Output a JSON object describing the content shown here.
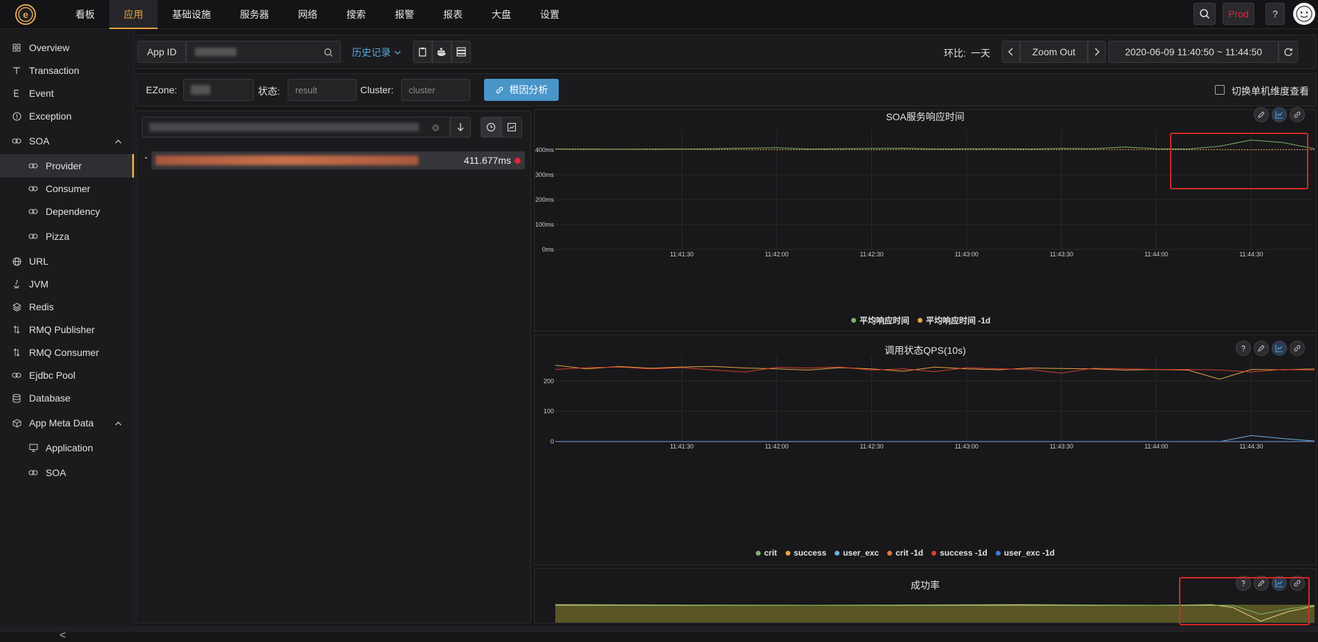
{
  "nav": {
    "items": [
      "看板",
      "应用",
      "基础设施",
      "服务器",
      "网络",
      "搜索",
      "报警",
      "报表",
      "大盘",
      "设置"
    ],
    "active_index": 1,
    "env": "Prod",
    "help": "?"
  },
  "sidebar": {
    "items": [
      {
        "label": "Overview",
        "icon": "grid-icon"
      },
      {
        "label": "Transaction",
        "icon": "t-icon"
      },
      {
        "label": "Event",
        "icon": "e-icon"
      },
      {
        "label": "Exception",
        "icon": "exclamation-icon"
      },
      {
        "label": "SOA",
        "icon": "link-icon",
        "expanded": true
      },
      {
        "label": "Provider",
        "icon": "link-icon",
        "sub": true,
        "active": true
      },
      {
        "label": "Consumer",
        "icon": "link-icon",
        "sub": true
      },
      {
        "label": "Dependency",
        "icon": "link-icon",
        "sub": true
      },
      {
        "label": "Pizza",
        "icon": "link-icon",
        "sub": true
      },
      {
        "label": "URL",
        "icon": "globe-icon"
      },
      {
        "label": "JVM",
        "icon": "java-icon"
      },
      {
        "label": "Redis",
        "icon": "layers-icon"
      },
      {
        "label": "RMQ Publisher",
        "icon": "arrows-icon"
      },
      {
        "label": "RMQ Consumer",
        "icon": "arrows-icon"
      },
      {
        "label": "Ejdbc Pool",
        "icon": "link-icon"
      },
      {
        "label": "Database",
        "icon": "database-icon"
      },
      {
        "label": "App Meta Data",
        "icon": "box-icon",
        "expanded": true
      },
      {
        "label": "Application",
        "icon": "monitor-icon",
        "sub": true
      },
      {
        "label": "SOA",
        "icon": "link-icon",
        "sub": true
      }
    ],
    "collapse": "<"
  },
  "toolbar": {
    "app_id_label": "App ID",
    "history_label": "历史记录",
    "compare_label": "环比:",
    "compare_value": "一天",
    "zoom_out": "Zoom Out",
    "time_range": "2020-06-09 11:40:50 ~ 11:44:50"
  },
  "filters": {
    "ezone_label": "EZone:",
    "status_label": "状态:",
    "status_placeholder": "result",
    "cluster_label": "Cluster:",
    "cluster_placeholder": "cluster",
    "root_cause_button": "根因分析",
    "switch_label": "切换单机维度查看"
  },
  "list": {
    "row_prefix": "-",
    "row_value": "411.677ms",
    "status_color": "#e0253b"
  },
  "charts": [
    {
      "title": "SOA服务响应时间",
      "yticks": [
        "400ms",
        "300ms",
        "200ms",
        "100ms",
        "0ms"
      ],
      "xticks": [
        "11:41:30",
        "11:42:00",
        "11:42:30",
        "11:43:00",
        "11:43:30",
        "11:44:00",
        "11:44:30"
      ],
      "legend": [
        {
          "name": "平均响应时间",
          "color": "#7fb56a"
        },
        {
          "name": "平均响应时间 -1d",
          "color": "#e8a642"
        }
      ]
    },
    {
      "title": "调用状态QPS(10s)",
      "yticks": [
        "200",
        "100",
        "0"
      ],
      "xticks": [
        "11:41:30",
        "11:42:00",
        "11:42:30",
        "11:43:00",
        "11:43:30",
        "11:44:00",
        "11:44:30"
      ],
      "legend": [
        {
          "name": "crit",
          "color": "#7fb56a"
        },
        {
          "name": "success",
          "color": "#e8a642"
        },
        {
          "name": "user_exc",
          "color": "#6fb1e0"
        },
        {
          "name": "crit -1d",
          "color": "#e07b3b"
        },
        {
          "name": "success -1d",
          "color": "#d9402e"
        },
        {
          "name": "user_exc -1d",
          "color": "#3b7bd9"
        }
      ]
    },
    {
      "title": "成功率"
    }
  ],
  "chart_data": [
    {
      "type": "line",
      "title": "SOA服务响应时间",
      "x": [
        "11:40:50",
        "11:41:00",
        "11:41:10",
        "11:41:20",
        "11:41:30",
        "11:41:40",
        "11:41:50",
        "11:42:00",
        "11:42:10",
        "11:42:20",
        "11:42:30",
        "11:42:40",
        "11:42:50",
        "11:43:00",
        "11:43:10",
        "11:43:20",
        "11:43:30",
        "11:43:40",
        "11:43:50",
        "11:44:00",
        "11:44:10",
        "11:44:20",
        "11:44:30",
        "11:44:40",
        "11:44:50"
      ],
      "ylim": [
        0,
        450
      ],
      "series": [
        {
          "name": "平均响应时间",
          "values": [
            404,
            404,
            403,
            404,
            404,
            405,
            407,
            409,
            404,
            405,
            406,
            407,
            404,
            405,
            405,
            404,
            406,
            405,
            412,
            405,
            404,
            415,
            440,
            430,
            405
          ]
        },
        {
          "name": "平均响应时间 -1d",
          "values": [
            403,
            402,
            403,
            402,
            403,
            402,
            402,
            401,
            402,
            402,
            401,
            402,
            402,
            401,
            402,
            401,
            402,
            402,
            402,
            402,
            401,
            402,
            401,
            402,
            401
          ]
        }
      ]
    },
    {
      "type": "line",
      "title": "调用状态QPS(10s)",
      "x": [
        "11:40:50",
        "11:41:00",
        "11:41:10",
        "11:41:20",
        "11:41:30",
        "11:41:40",
        "11:41:50",
        "11:42:00",
        "11:42:10",
        "11:42:20",
        "11:42:30",
        "11:42:40",
        "11:42:50",
        "11:43:00",
        "11:43:10",
        "11:43:20",
        "11:43:30",
        "11:43:40",
        "11:43:50",
        "11:44:00",
        "11:44:10",
        "11:44:20",
        "11:44:30",
        "11:44:40",
        "11:44:50"
      ],
      "ylim": [
        0,
        260
      ],
      "series": [
        {
          "name": "crit",
          "values": [
            0,
            0,
            0,
            0,
            0,
            0,
            0,
            0,
            0,
            0,
            0,
            0,
            0,
            0,
            0,
            0,
            0,
            0,
            0,
            0,
            0,
            0,
            0,
            0,
            0
          ]
        },
        {
          "name": "success",
          "values": [
            252,
            240,
            248,
            242,
            246,
            248,
            243,
            240,
            236,
            244,
            240,
            232,
            246,
            240,
            237,
            243,
            241,
            240,
            236,
            238,
            236,
            206,
            238,
            237,
            240
          ]
        },
        {
          "name": "user_exc",
          "values": [
            0,
            0,
            0,
            0,
            0,
            0,
            0,
            0,
            0,
            0,
            0,
            0,
            0,
            0,
            0,
            0,
            0,
            0,
            0,
            0,
            0,
            0,
            20,
            10,
            2
          ]
        },
        {
          "name": "crit -1d",
          "values": [
            0,
            0,
            0,
            0,
            0,
            0,
            0,
            0,
            0,
            0,
            0,
            0,
            0,
            0,
            0,
            0,
            0,
            0,
            0,
            0,
            0,
            0,
            0,
            0,
            0
          ]
        },
        {
          "name": "success -1d",
          "values": [
            238,
            244,
            246,
            240,
            244,
            236,
            230,
            245,
            243,
            246,
            236,
            240,
            231,
            244,
            240,
            238,
            226,
            242,
            240,
            238,
            238,
            236,
            230,
            238,
            236
          ]
        },
        {
          "name": "user_exc -1d",
          "values": [
            1,
            1,
            1,
            1,
            1,
            1,
            1,
            1,
            1,
            1,
            1,
            1,
            1,
            1,
            1,
            1,
            1,
            1,
            1,
            1,
            1,
            1,
            1,
            1,
            1
          ]
        }
      ]
    }
  ],
  "colors": {
    "accent": "#e8a642",
    "env": "#e0253b",
    "primary_button": "#4a96c9",
    "highlight": "#d42a25"
  }
}
